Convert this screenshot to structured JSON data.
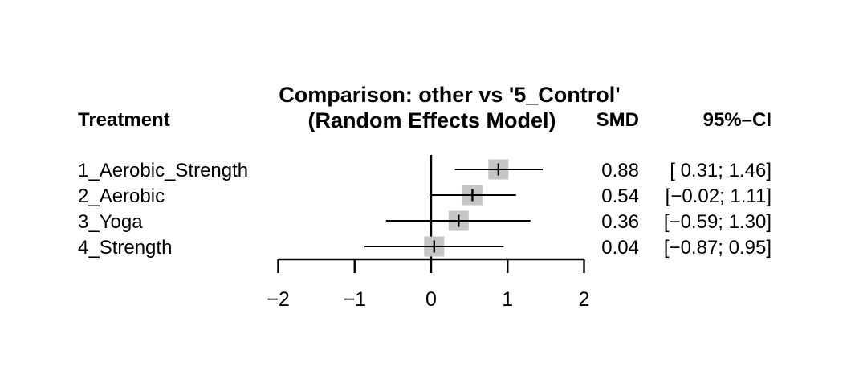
{
  "title": {
    "line1": "Comparison: other vs '5_Control'",
    "line2": "(Random Effects Model)"
  },
  "columns": {
    "treatment": "Treatment",
    "smd": "SMD",
    "ci": "95%–CI"
  },
  "colors": {
    "background": "#ffffff",
    "text": "#000000",
    "line": "#000000",
    "square": "#c6c6c6"
  },
  "chart_data": {
    "type": "forest",
    "title": "Comparison: other vs '5_Control' (Random Effects Model)",
    "effect_measure": "SMD",
    "xlim": [
      -2,
      2
    ],
    "x_axis": {
      "ticks": [
        -2,
        -1,
        0,
        1,
        2
      ],
      "tick_labels": [
        "−2",
        "−1",
        "0",
        "1",
        "2"
      ],
      "reference_line": 0
    },
    "rows": [
      {
        "treatment": "1_Aerobic_Strength",
        "smd": 0.88,
        "ci_low": 0.31,
        "ci_high": 1.46,
        "smd_label": "0.88",
        "ci_label": "[ 0.31; 1.46]"
      },
      {
        "treatment": "2_Aerobic",
        "smd": 0.54,
        "ci_low": -0.02,
        "ci_high": 1.11,
        "smd_label": "0.54",
        "ci_label": "[−0.02; 1.11]"
      },
      {
        "treatment": "3_Yoga",
        "smd": 0.36,
        "ci_low": -0.59,
        "ci_high": 1.3,
        "smd_label": "0.36",
        "ci_label": "[−0.59; 1.30]"
      },
      {
        "treatment": "4_Strength",
        "smd": 0.04,
        "ci_low": -0.87,
        "ci_high": 0.95,
        "smd_label": "0.04",
        "ci_label": "[−0.87; 0.95]"
      }
    ]
  }
}
